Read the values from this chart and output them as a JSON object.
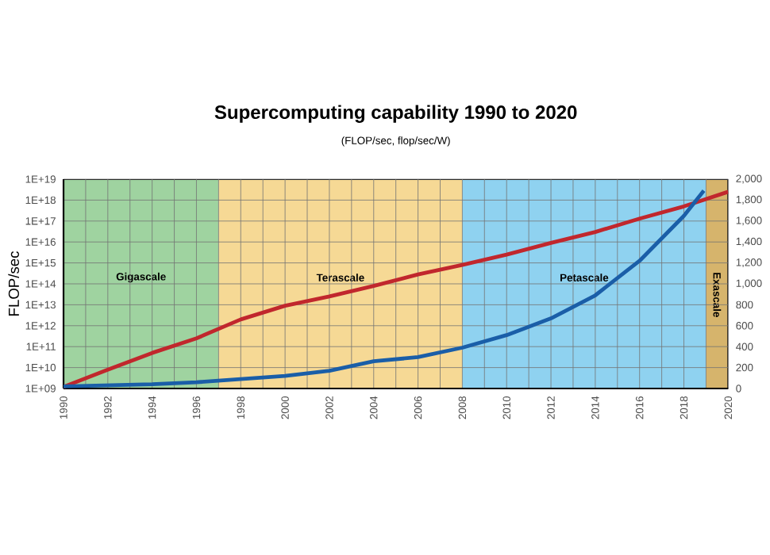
{
  "chart_data": {
    "type": "line",
    "title": "Supercomputing capability 1990 to 2020",
    "subtitle": "(FLOP/sec, flop/sec/W)",
    "ylabel": "FLOP/sec",
    "log": "y",
    "grid": true,
    "marker": "none",
    "line_style": "solid",
    "x": [
      1990,
      1992,
      1994,
      1996,
      1998,
      2000,
      2002,
      2004,
      2006,
      2008,
      2010,
      2012,
      2014,
      2016,
      2018,
      2020
    ],
    "xlim": [
      1990,
      2020
    ],
    "xticks": [
      1990,
      1992,
      1994,
      1996,
      1998,
      2000,
      2002,
      2004,
      2006,
      2008,
      2010,
      2012,
      2014,
      2016,
      2018,
      2020
    ],
    "ylim": [
      1000000000.0,
      1e+19
    ],
    "yticks": [
      {
        "value": 1000000000.0,
        "label": "1E+09"
      },
      {
        "value": 10000000000.0,
        "label": "1E+10"
      },
      {
        "value": 100000000000.0,
        "label": "1E+11"
      },
      {
        "value": 1000000000000.0,
        "label": "1E+12"
      },
      {
        "value": 10000000000000.0,
        "label": "1E+13"
      },
      {
        "value": 100000000000000.0,
        "label": "1E+14"
      },
      {
        "value": 1000000000000000.0,
        "label": "1E+15"
      },
      {
        "value": 1e+16,
        "label": "1E+16"
      },
      {
        "value": 1e+17,
        "label": "1E+17"
      },
      {
        "value": 1e+18,
        "label": "1E+18"
      },
      {
        "value": 1e+19,
        "label": "1E+19"
      }
    ],
    "y2lim": [
      0,
      2000
    ],
    "y2ticks": [
      0,
      200,
      400,
      600,
      800,
      {
        "value": 1000,
        "label": "1,000"
      },
      {
        "value": 1200,
        "label": "1,200"
      },
      {
        "value": 1400,
        "label": "1,400"
      },
      {
        "value": 1600,
        "label": "1,600"
      },
      {
        "value": 1800,
        "label": "1,800"
      },
      {
        "value": 2000,
        "label": "2,000"
      }
    ],
    "bands": [
      {
        "axis": "x",
        "from": 1990,
        "to": 1997,
        "label": "Gigascale",
        "color": "#9fd3a0"
      },
      {
        "axis": "x",
        "from": 1997,
        "to": 2008,
        "label": "Terascale",
        "color": "#f6d995"
      },
      {
        "axis": "x",
        "from": 2008,
        "to": 2019,
        "label": "Petascale",
        "color": "#8fd2f0"
      },
      {
        "axis": "x",
        "from": 2019,
        "to": 2020,
        "label": "Exascale",
        "color": "#d6b46c"
      }
    ],
    "series": [
      {
        "color": "#c1272d",
        "values": [
          1200000000.0,
          8000000000.0,
          50000000000.0,
          250000000000.0,
          2000000000000.0,
          9000000000000.0,
          25000000000000.0,
          80000000000000.0,
          280000000000000.0,
          800000000000000.0,
          2500000000000000.0,
          9000000000000000.0,
          3e+16,
          1.3e+17,
          5e+17,
          2.5e+18
        ]
      },
      {
        "color": "#1a5ea8",
        "axis": "y2",
        "x": [
          1990,
          1994,
          1996,
          1998,
          2000,
          2002,
          2004,
          2006,
          2008,
          2010,
          2012,
          2014,
          2016,
          2018,
          2018.9
        ],
        "values": [
          20,
          40,
          60,
          90,
          120,
          170,
          260,
          300,
          390,
          510,
          670,
          890,
          1220,
          1650,
          1890
        ]
      }
    ]
  }
}
